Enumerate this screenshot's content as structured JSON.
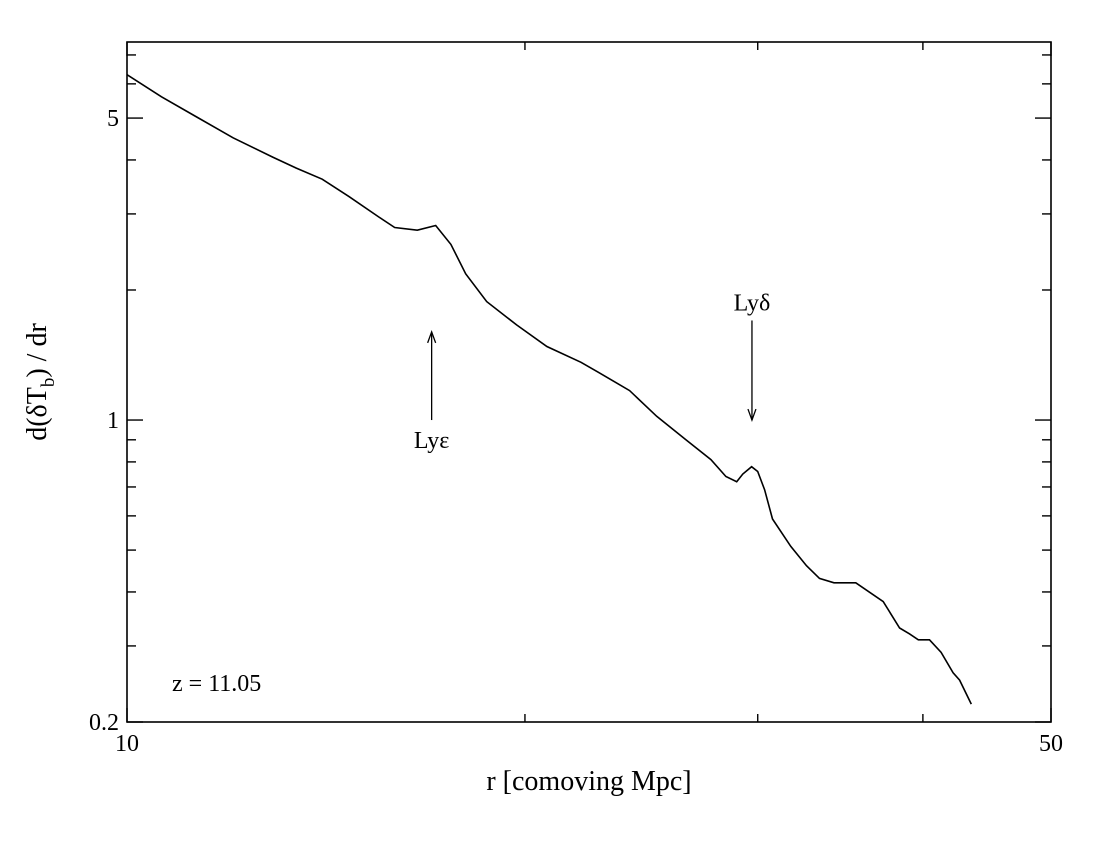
{
  "chart_data": {
    "type": "line",
    "xscale": "log",
    "yscale": "log",
    "xlim": [
      10,
      50
    ],
    "ylim": [
      0.2,
      7.5
    ],
    "xticks": [
      {
        "value": 10,
        "label": "10"
      },
      {
        "value": 50,
        "label": "50"
      }
    ],
    "yticks": [
      {
        "value": 0.2,
        "label": "0.2"
      },
      {
        "value": 1,
        "label": "1"
      },
      {
        "value": 5,
        "label": "5"
      }
    ],
    "xlabel": "r [comoving Mpc]",
    "ylabel": {
      "main": "d(δT",
      "sub": "b",
      "tail": ") / dr"
    },
    "annotation_text": "z = 11.05",
    "series": [
      {
        "x": [
          10.0,
          10.62,
          11.29,
          12.03,
          12.89,
          13.43,
          14.05,
          14.72,
          15.51,
          15.94,
          16.58,
          17.12,
          17.58,
          18.04,
          18.71,
          19.71,
          20.78,
          22.05,
          22.73,
          24.0,
          25.16,
          26.47,
          27.65,
          28.38,
          28.92,
          29.23,
          29.68,
          30.0,
          30.36,
          30.78,
          31.78,
          32.66,
          33.41,
          34.26,
          35.59,
          37.33,
          38.41,
          39.07,
          39.68,
          40.46,
          41.29,
          42.16,
          42.64,
          43.52
        ],
        "y": [
          6.3,
          5.6,
          5.03,
          4.5,
          4.06,
          3.83,
          3.61,
          3.29,
          2.95,
          2.79,
          2.75,
          2.82,
          2.55,
          2.18,
          1.88,
          1.66,
          1.48,
          1.36,
          1.29,
          1.17,
          1.02,
          0.9,
          0.81,
          0.74,
          0.72,
          0.75,
          0.78,
          0.76,
          0.69,
          0.59,
          0.51,
          0.46,
          0.43,
          0.42,
          0.42,
          0.38,
          0.33,
          0.32,
          0.31,
          0.31,
          0.29,
          0.26,
          0.25,
          0.22
        ]
      }
    ],
    "arrows": [
      {
        "label": "Lyε",
        "x": 17.0,
        "direction": "up",
        "y_label": 0.9,
        "y_tail": 1.0,
        "y_head": 1.6
      },
      {
        "label": "Lyδ",
        "x": 29.7,
        "direction": "down",
        "y_label": 1.87,
        "y_tail": 1.7,
        "y_head": 1.0
      }
    ]
  }
}
